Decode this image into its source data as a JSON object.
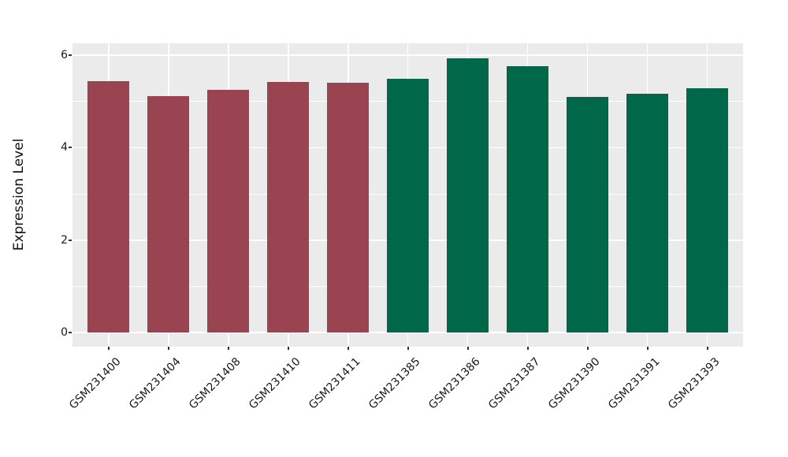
{
  "chart_data": {
    "type": "bar",
    "title": "",
    "xlabel": "",
    "ylabel": "Expression Level",
    "categories": [
      "GSM231400",
      "GSM231404",
      "GSM231408",
      "GSM231410",
      "GSM231411",
      "GSM231385",
      "GSM231386",
      "GSM231387",
      "GSM231390",
      "GSM231391",
      "GSM231393"
    ],
    "values": [
      5.44,
      5.12,
      5.26,
      5.42,
      5.4,
      5.49,
      5.94,
      5.76,
      5.1,
      5.16,
      5.29
    ],
    "groups": [
      "group1",
      "group1",
      "group1",
      "group1",
      "group1",
      "group2",
      "group2",
      "group2",
      "group2",
      "group2",
      "group2"
    ],
    "group_colors": {
      "group1": "#9A4351",
      "group2": "#006748"
    },
    "yticks_major": [
      0,
      2,
      4,
      6
    ],
    "yticks_minor": [
      1,
      3,
      5
    ],
    "ylim": [
      -0.3,
      6.26
    ],
    "grid": true,
    "legend": "none",
    "panel_bg": "#EBEBEB",
    "grid_color": "#FFFFFF",
    "tick_color": "#333333",
    "text_color": "#1A1A1A"
  }
}
